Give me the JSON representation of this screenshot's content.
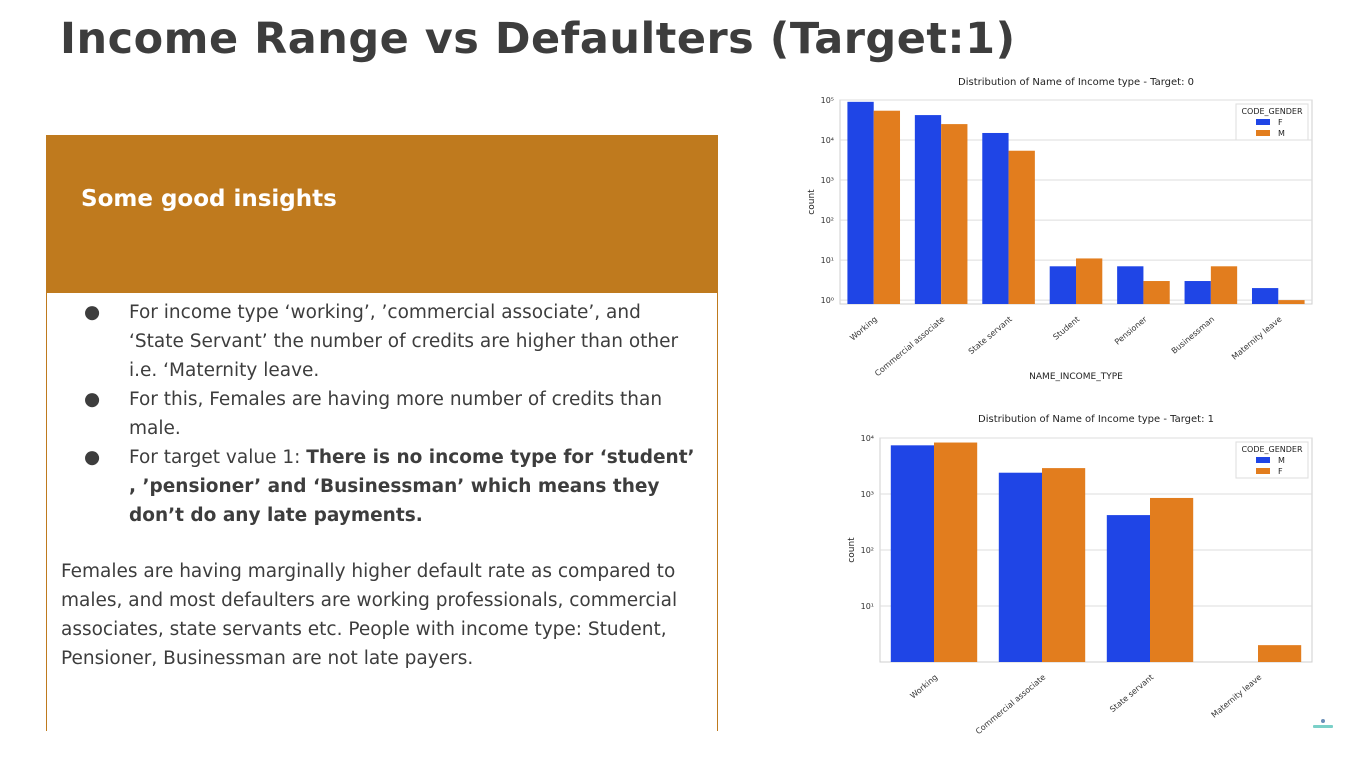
{
  "slide": {
    "title": "Income Range vs Defaulters (Target:1)",
    "panel_heading": "Some good insights",
    "bullets": [
      {
        "normal": "For income type ‘working’, ’commercial associate’, and ‘State Servant’ the number of credits are higher than other i.e. ‘Maternity leave.",
        "bold": ""
      },
      {
        "normal": "For this, Females are having more number of credits than male.",
        "bold": ""
      },
      {
        "normal": "For target value 1: ",
        "bold": "There is no income type for ‘student’ , ’pensioner’ and ‘Businessman’ which means they don’t do any late payments."
      }
    ],
    "summary": "Females are having marginally higher default rate as compared to males, and most defaulters are working professionals, commercial associates, state servants etc. People with income type: Student, Pensioner, Businessman are not late payers."
  },
  "colors": {
    "accent": "#bf7a1e",
    "blue": "#1f45e6",
    "orange": "#e27d1e"
  },
  "chart_data": [
    {
      "type": "bar",
      "title": "Distribution of Name of Income type - Target: 0",
      "xlabel": "NAME_INCOME_TYPE",
      "ylabel": "count",
      "yscale": "log",
      "ylim": [
        0.8,
        100000
      ],
      "yticks": [
        1,
        10,
        100,
        1000,
        10000,
        100000
      ],
      "grid": true,
      "legend_title": "CODE_GENDER",
      "legend_position": "top-right",
      "categories": [
        "Working",
        "Commercial associate",
        "State servant",
        "Student",
        "Pensioner",
        "Businessman",
        "Maternity leave"
      ],
      "series": [
        {
          "name": "F",
          "color": "#1f45e6",
          "values": [
            90000,
            42000,
            15000,
            7,
            7,
            3,
            2
          ]
        },
        {
          "name": "M",
          "color": "#e27d1e",
          "values": [
            54000,
            25000,
            5400,
            11,
            3,
            7,
            1
          ]
        }
      ]
    },
    {
      "type": "bar",
      "title": "Distribution of Name of Income type - Target: 1",
      "xlabel": "",
      "ylabel": "count",
      "yscale": "log",
      "ylim": [
        1,
        10000
      ],
      "yticks": [
        10,
        100,
        1000,
        10000
      ],
      "grid": true,
      "legend_title": "CODE_GENDER",
      "legend_position": "top-right",
      "categories": [
        "Working",
        "Commercial associate",
        "State servant",
        "Maternity leave"
      ],
      "series": [
        {
          "name": "M",
          "color": "#1f45e6",
          "values": [
            7400,
            2400,
            420,
            null
          ]
        },
        {
          "name": "F",
          "color": "#e27d1e",
          "values": [
            8300,
            2900,
            850,
            2
          ]
        }
      ]
    }
  ]
}
